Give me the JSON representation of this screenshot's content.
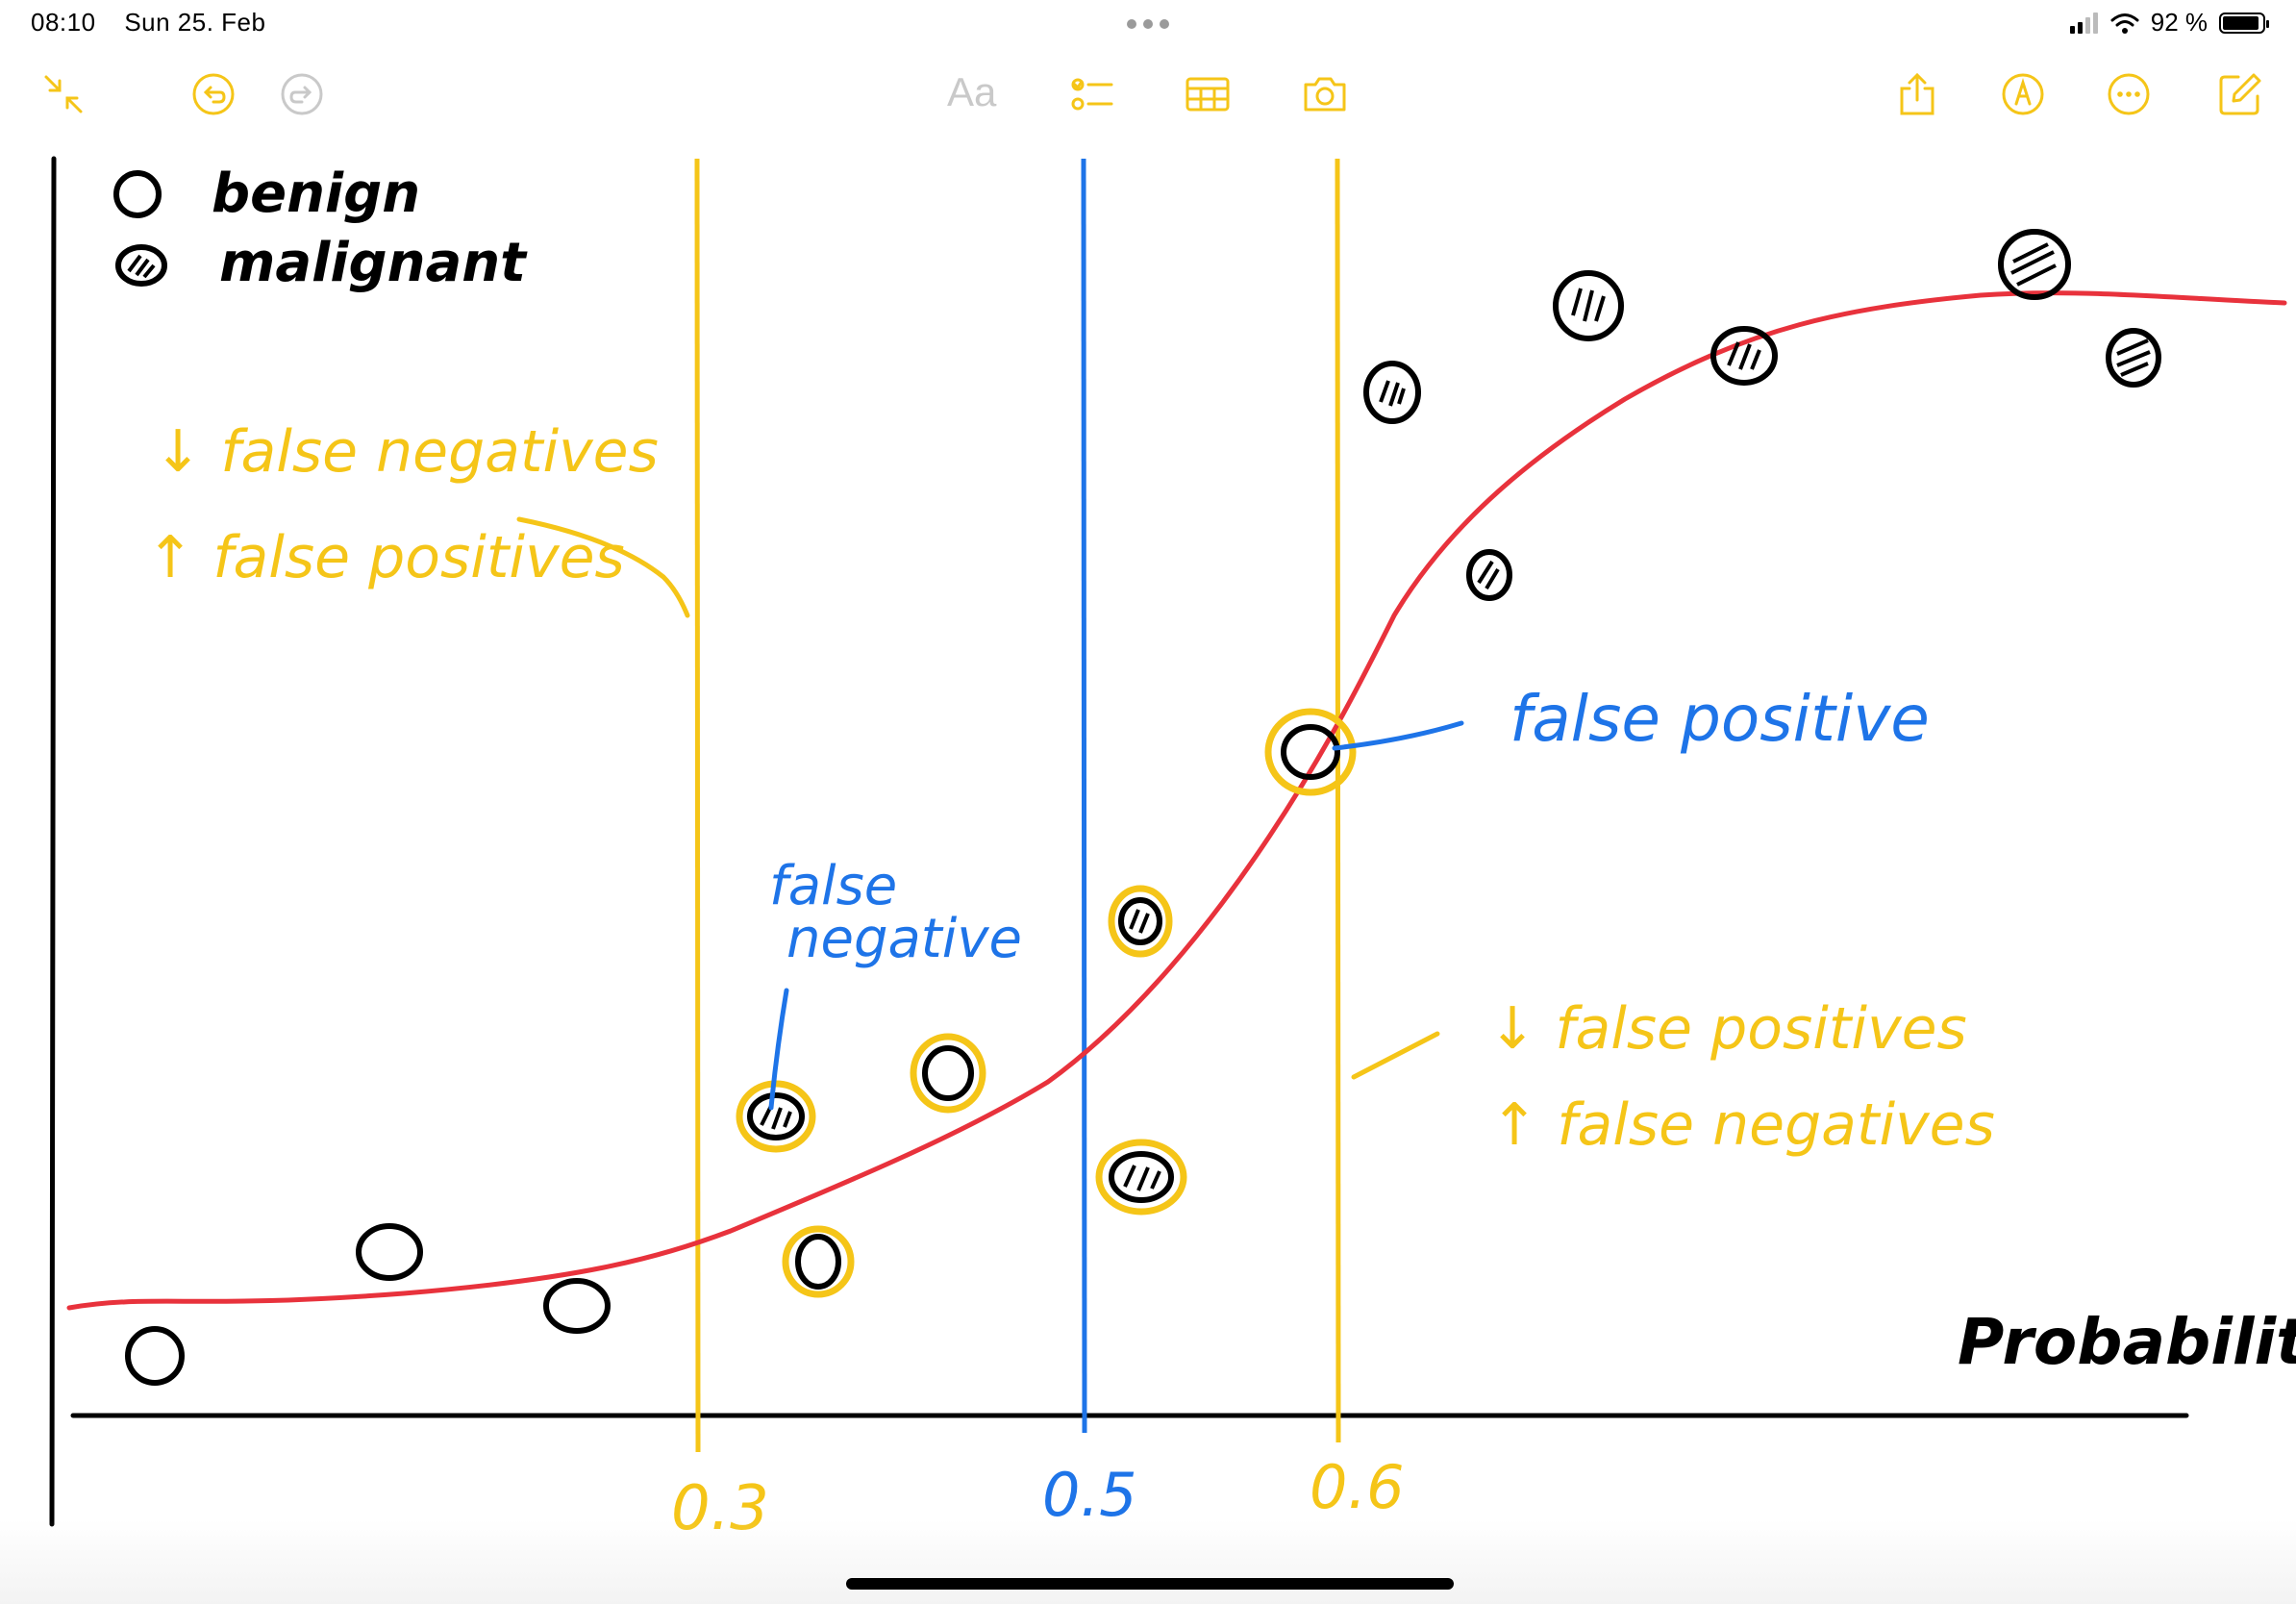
{
  "status_bar": {
    "time": "08:10",
    "date": "Sun 25. Feb",
    "battery_text": "92 %",
    "battery_level": 0.92
  },
  "toolbar": {
    "format_label": "Aa",
    "accent_color": "#F5C518",
    "disabled_color": "#C9C9C9",
    "icons": [
      "collapse-icon",
      "undo-icon",
      "redo-icon",
      "checklist-icon",
      "table-icon",
      "camera-icon",
      "share-icon",
      "markup-icon",
      "more-icon",
      "compose-icon"
    ]
  },
  "drawing": {
    "legend": {
      "benign_label": "benign",
      "malignant_label": "malignant"
    },
    "thresholds": [
      {
        "label": "0.3",
        "color": "#F5C518"
      },
      {
        "label": "0.5",
        "color": "#1E74E8"
      },
      {
        "label": "0.6",
        "color": "#F5C518"
      }
    ],
    "annotations": {
      "low_threshold_line1": "↓ false negatives",
      "low_threshold_line2": "↑ false positives",
      "high_threshold_line1": "↓ false positives",
      "high_threshold_line2": "↑ false negatives",
      "false_positive": "false positive",
      "false_negative_line1": "false",
      "false_negative_line2": "negative"
    },
    "axis_label": "Probability",
    "curve_color": "#E8323C",
    "axis_color": "#000000"
  }
}
